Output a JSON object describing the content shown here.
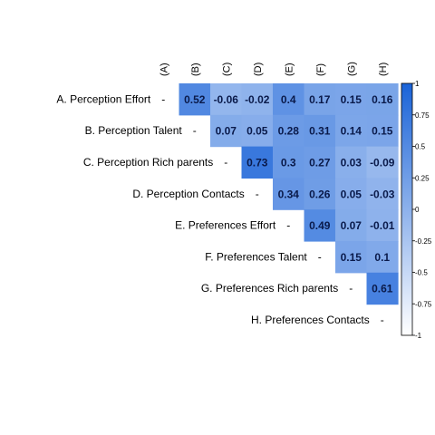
{
  "chart_data": {
    "type": "heatmap",
    "subtype": "correlation-upper-triangle",
    "rows": [
      "A. Perception Effort",
      "B. Perception Talent",
      "C. Perception Rich parents",
      "D. Perception Contacts",
      "E. Preferences Effort",
      "F. Preferences Talent",
      "G. Preferences Rich parents",
      "H. Preferences Contacts"
    ],
    "columns": [
      "(A)",
      "(B)",
      "(C)",
      "(D)",
      "(E)",
      "(F)",
      "(G)",
      "(H)"
    ],
    "diagonal_label": "-",
    "cells": [
      [
        null,
        "0.52",
        "-0.06",
        "-0.02",
        "0.4",
        "0.17",
        "0.15",
        "0.16"
      ],
      [
        null,
        null,
        "0.07",
        "0.05",
        "0.28",
        "0.31",
        "0.14",
        "0.15"
      ],
      [
        null,
        null,
        null,
        "0.73",
        "0.3",
        "0.27",
        "0.03",
        "-0.09"
      ],
      [
        null,
        null,
        null,
        null,
        "0.34",
        "0.26",
        "0.05",
        "-0.03"
      ],
      [
        null,
        null,
        null,
        null,
        null,
        "0.49",
        "0.07",
        "-0.01"
      ],
      [
        null,
        null,
        null,
        null,
        null,
        null,
        "0.15",
        "0.1"
      ],
      [
        null,
        null,
        null,
        null,
        null,
        null,
        null,
        "0.61"
      ],
      [
        null,
        null,
        null,
        null,
        null,
        null,
        null,
        null
      ]
    ],
    "colorbar": {
      "range": [
        -1,
        1
      ],
      "ticks": [
        "1",
        "0.75",
        "0.5",
        "0.25",
        "0",
        "-0.25",
        "-0.5",
        "-0.75",
        "-1"
      ],
      "color_low": "#ffffff",
      "color_high": "#1a63d8"
    },
    "grid": false
  }
}
